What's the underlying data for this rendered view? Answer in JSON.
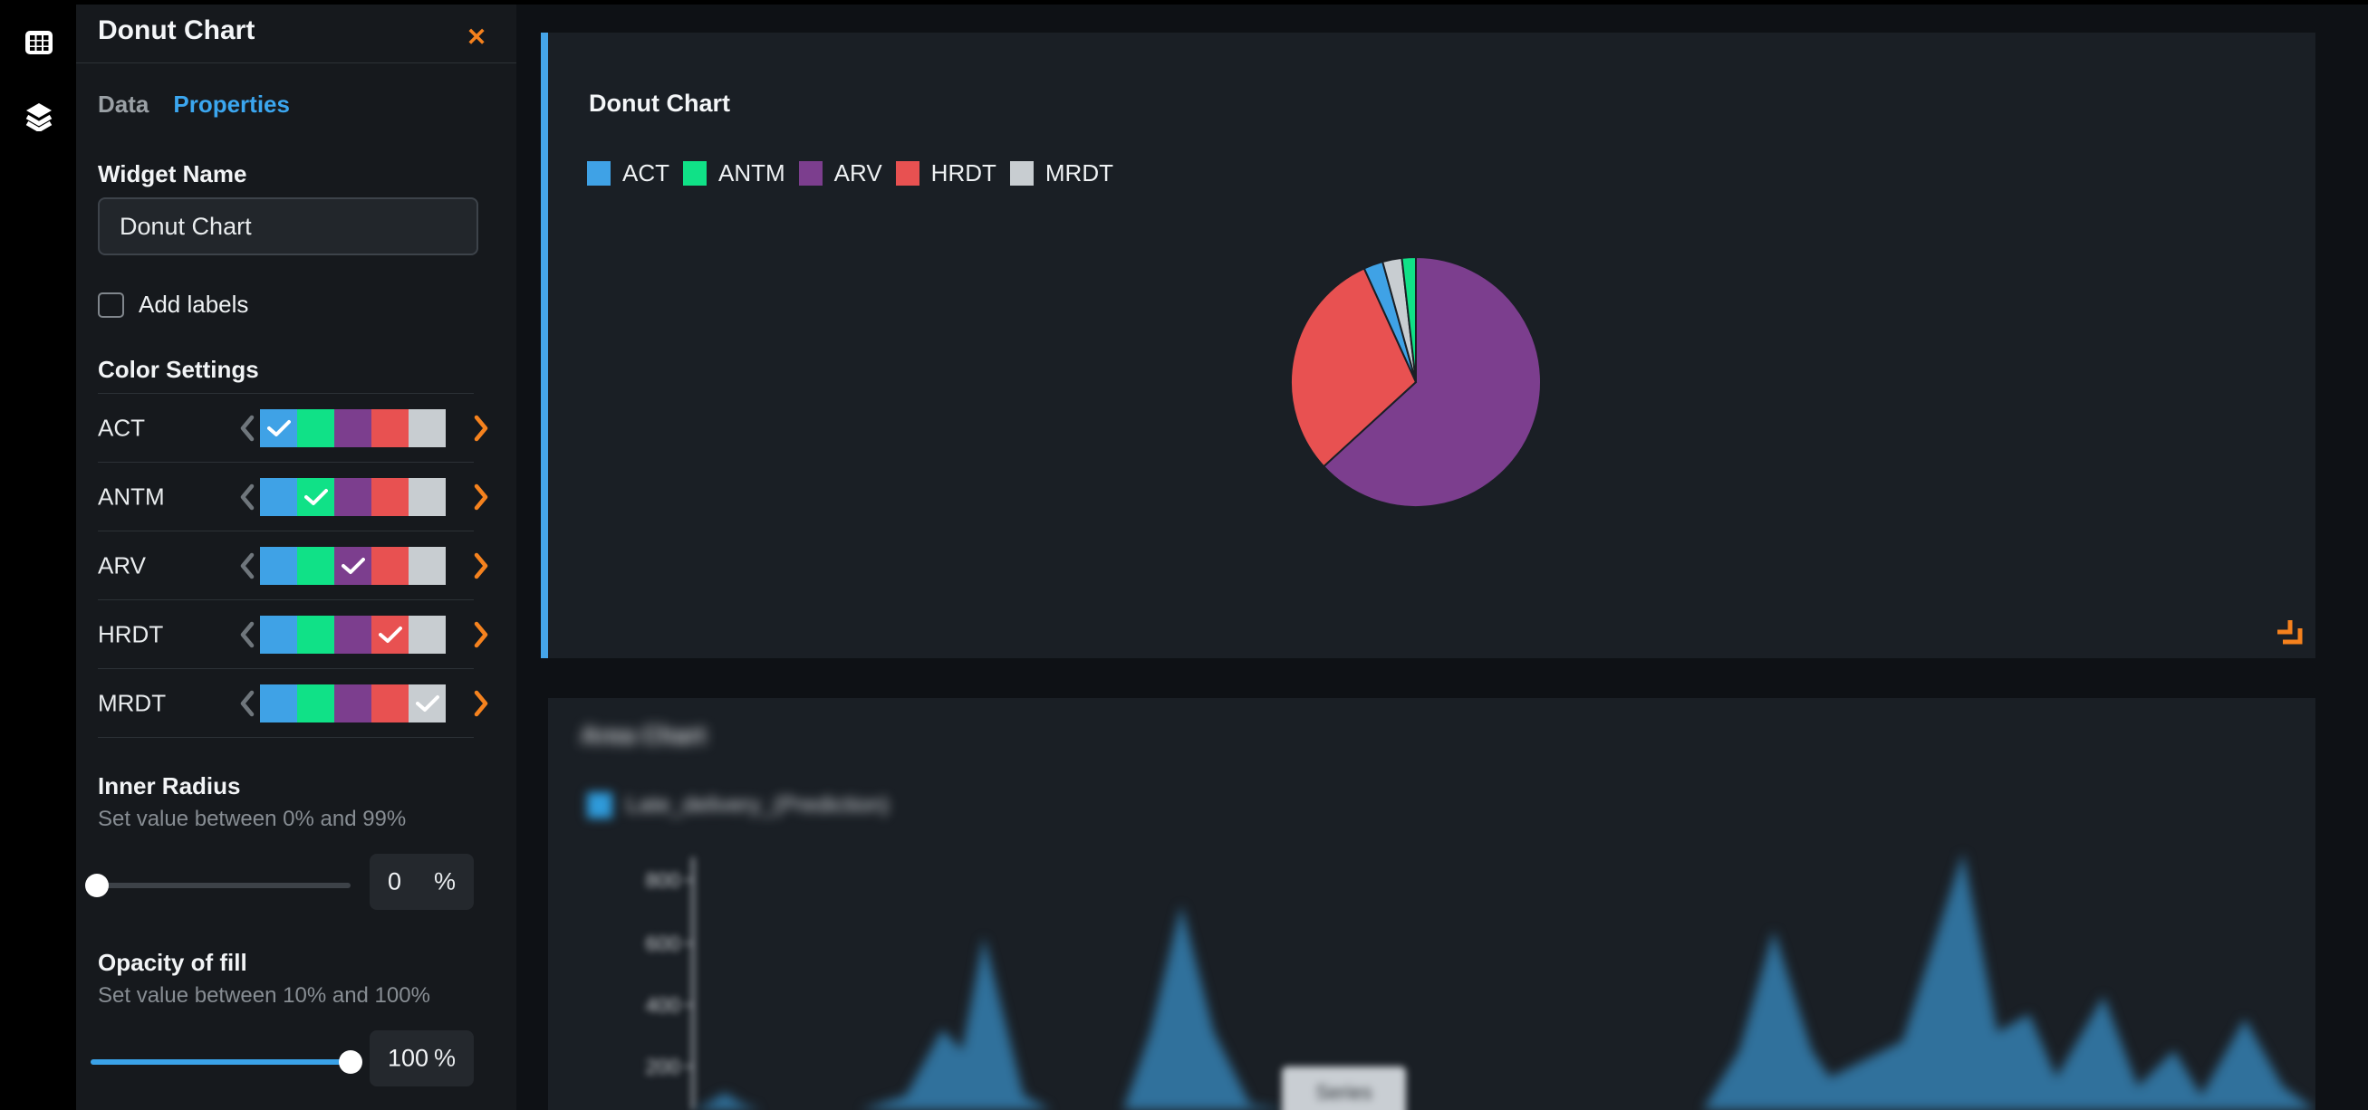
{
  "colors": {
    "accent_blue": "#3ba6ef",
    "selection_bar_blue": "#45a5e9",
    "slider_blue": "#3aa2e8",
    "orange": "#f5811d",
    "panel_bg": "#1a1f25",
    "sidebar_bg": "#16191d",
    "main_bg": "#0e1115",
    "palette": [
      "#3fa2e6",
      "#10e187",
      "#7c3e8e",
      "#e85151",
      "#c8cdd1"
    ]
  },
  "rail": {
    "icons": [
      "grid",
      "layers"
    ]
  },
  "panel": {
    "title": "Donut Chart",
    "close_label": "✕",
    "tabs": [
      {
        "label": "Data",
        "active": false
      },
      {
        "label": "Properties",
        "active": true
      }
    ],
    "widget_name": {
      "label": "Widget Name",
      "value": "Donut Chart"
    },
    "add_labels": {
      "label": "Add labels",
      "checked": false
    },
    "color_settings": {
      "title": "Color Settings",
      "rows": [
        {
          "label": "ACT",
          "selected_index": 0
        },
        {
          "label": "ANTM",
          "selected_index": 1
        },
        {
          "label": "ARV",
          "selected_index": 2
        },
        {
          "label": "HRDT",
          "selected_index": 3
        },
        {
          "label": "MRDT",
          "selected_index": 4
        }
      ]
    },
    "inner_radius": {
      "label": "Inner Radius",
      "helper": "Set value between 0% and 99%",
      "value": "0",
      "unit": "%",
      "fraction": 0
    },
    "opacity": {
      "label": "Opacity of fill",
      "helper": "Set value between 10% and 100%",
      "value": "100",
      "unit": "%",
      "fraction": 1
    }
  },
  "main": {
    "donut_widget": {
      "title": "Donut Chart",
      "legend": [
        {
          "label": "ACT",
          "color": "#3fa2e6"
        },
        {
          "label": "ANTM",
          "color": "#10e187"
        },
        {
          "label": "ARV",
          "color": "#7c3e8e"
        },
        {
          "label": "HRDT",
          "color": "#e85151"
        },
        {
          "label": "MRDT",
          "color": "#c8cdd1"
        }
      ]
    },
    "area_widget": {
      "blurred": true,
      "blurred_title": "Area Chart",
      "blurred_legend_label": "Late_delivery_(Prediction)",
      "legend_color": "#2f9bdb",
      "blurred_tooltip": "Series"
    }
  },
  "chart_data": [
    {
      "type": "pie",
      "title": "Donut Chart",
      "categories": [
        "ACT",
        "ANTM",
        "ARV",
        "HRDT",
        "MRDT"
      ],
      "values": [
        2.5,
        1.8,
        63.2,
        30.0,
        2.5
      ],
      "colors": [
        "#3fa2e6",
        "#10e187",
        "#7c3e8e",
        "#e85151",
        "#c8cdd1"
      ],
      "draw_order_clockwise_from_top": [
        2,
        3,
        0,
        4,
        1
      ],
      "inner_radius_pct": 0,
      "legend_position": "top-left",
      "slice_stroke": "#1a1f25"
    },
    {
      "type": "area",
      "values_obscured": true,
      "note": "entire chart is blurred/redacted in the screenshot; points approximate visible silhouette",
      "series": [
        {
          "name": "(blurred)",
          "color": "#30719c"
        }
      ],
      "axis": {
        "x": 160,
        "top": 176,
        "bottom": 455,
        "color": "#b5bbc0"
      },
      "ticks": [
        {
          "label": "800",
          "y": 201
        },
        {
          "label": "600",
          "y": 271
        },
        {
          "label": "400",
          "y": 339
        },
        {
          "label": "200",
          "y": 407
        }
      ],
      "baseline_y": 455,
      "points": [
        [
          160,
          455
        ],
        [
          175,
          449
        ],
        [
          195,
          436
        ],
        [
          215,
          449
        ],
        [
          235,
          455
        ],
        [
          345,
          455
        ],
        [
          395,
          439
        ],
        [
          435,
          366
        ],
        [
          457,
          389
        ],
        [
          481,
          264
        ],
        [
          525,
          439
        ],
        [
          555,
          455
        ],
        [
          635,
          455
        ],
        [
          665,
          369
        ],
        [
          699,
          229
        ],
        [
          735,
          369
        ],
        [
          775,
          449
        ],
        [
          815,
          455
        ],
        [
          1275,
          455
        ],
        [
          1315,
          389
        ],
        [
          1353,
          257
        ],
        [
          1395,
          389
        ],
        [
          1415,
          419
        ],
        [
          1495,
          379
        ],
        [
          1562,
          171
        ],
        [
          1600,
          369
        ],
        [
          1635,
          349
        ],
        [
          1665,
          419
        ],
        [
          1717,
          329
        ],
        [
          1755,
          429
        ],
        [
          1795,
          389
        ],
        [
          1825,
          439
        ],
        [
          1873,
          354
        ],
        [
          1915,
          429
        ],
        [
          1951,
          455
        ]
      ]
    }
  ]
}
